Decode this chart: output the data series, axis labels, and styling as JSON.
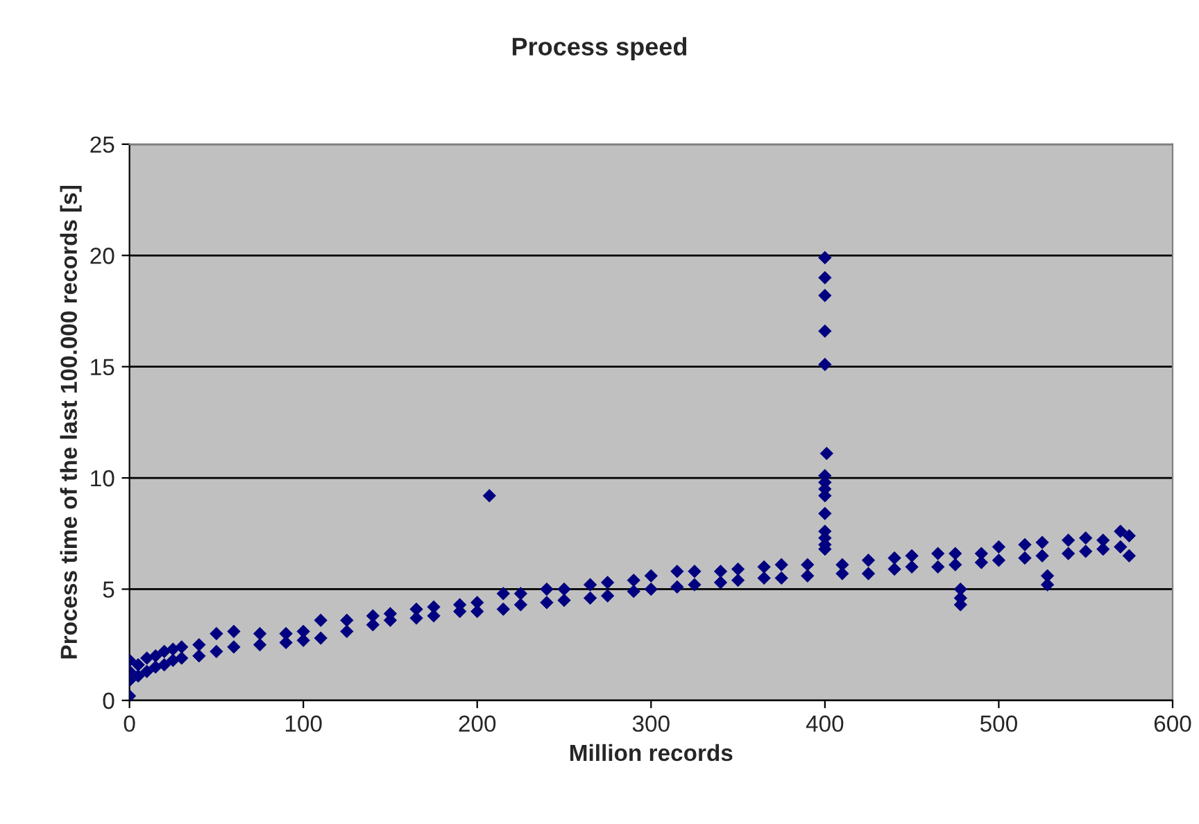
{
  "chart_data": {
    "type": "scatter",
    "title": "Process speed",
    "xlabel": "Million records",
    "ylabel": "Process time of the last 100.000 records [s]",
    "xlim": [
      0,
      600
    ],
    "ylim": [
      0,
      25
    ],
    "xticks": [
      0,
      100,
      200,
      300,
      400,
      500,
      600
    ],
    "yticks": [
      0,
      5,
      10,
      15,
      20,
      25
    ],
    "grid": "y",
    "marker": "diamond",
    "series": [
      {
        "color": "#000080",
        "x": [
          0,
          0,
          0,
          0,
          5,
          5,
          10,
          10,
          15,
          15,
          20,
          20,
          25,
          25,
          30,
          30,
          40,
          40,
          50,
          50,
          60,
          60,
          75,
          75,
          90,
          90,
          100,
          100,
          110,
          110,
          125,
          125,
          140,
          140,
          150,
          150,
          165,
          165,
          175,
          175,
          190,
          190,
          200,
          200,
          215,
          215,
          225,
          225,
          240,
          240,
          250,
          250,
          265,
          265,
          275,
          275,
          290,
          290,
          300,
          300,
          315,
          315,
          325,
          325,
          340,
          340,
          350,
          350,
          365,
          365,
          375,
          375,
          390,
          390,
          410,
          410,
          425,
          425,
          440,
          440,
          450,
          450,
          465,
          465,
          475,
          475,
          490,
          490,
          500,
          500,
          515,
          515,
          525,
          525,
          540,
          540,
          550,
          550,
          560,
          560,
          570,
          570,
          575,
          575,
          207,
          400,
          400,
          400,
          400,
          400,
          401,
          400,
          400,
          400,
          400,
          400,
          400,
          400,
          400,
          400,
          478,
          478,
          478,
          528,
          528
        ],
        "values": [
          1.8,
          1.3,
          0.9,
          0.2,
          1.6,
          1.1,
          1.9,
          1.3,
          2.0,
          1.5,
          2.2,
          1.6,
          2.3,
          1.8,
          2.4,
          1.9,
          2.5,
          2.0,
          3.0,
          2.2,
          3.1,
          2.4,
          3.0,
          2.5,
          3.0,
          2.6,
          3.1,
          2.7,
          3.6,
          2.8,
          3.6,
          3.1,
          3.8,
          3.4,
          3.9,
          3.6,
          4.1,
          3.7,
          4.2,
          3.8,
          4.3,
          4.0,
          4.4,
          4.0,
          4.8,
          4.1,
          4.8,
          4.3,
          5.0,
          4.4,
          5.0,
          4.5,
          5.2,
          4.6,
          5.3,
          4.7,
          5.4,
          4.9,
          5.6,
          5.0,
          5.8,
          5.1,
          5.8,
          5.2,
          5.8,
          5.3,
          5.9,
          5.4,
          6.0,
          5.5,
          6.1,
          5.5,
          6.1,
          5.6,
          6.1,
          5.7,
          6.3,
          5.7,
          6.4,
          5.9,
          6.5,
          6.0,
          6.6,
          6.0,
          6.6,
          6.1,
          6.6,
          6.2,
          6.9,
          6.3,
          7.0,
          6.4,
          7.1,
          6.5,
          7.2,
          6.6,
          7.3,
          6.7,
          7.2,
          6.8,
          7.6,
          6.9,
          7.4,
          6.5,
          9.2,
          19.9,
          19.0,
          18.2,
          16.6,
          15.1,
          11.1,
          10.1,
          9.8,
          9.5,
          9.2,
          8.4,
          7.6,
          7.3,
          7.0,
          6.8,
          5.0,
          4.6,
          4.3,
          5.6,
          5.2
        ]
      }
    ]
  }
}
